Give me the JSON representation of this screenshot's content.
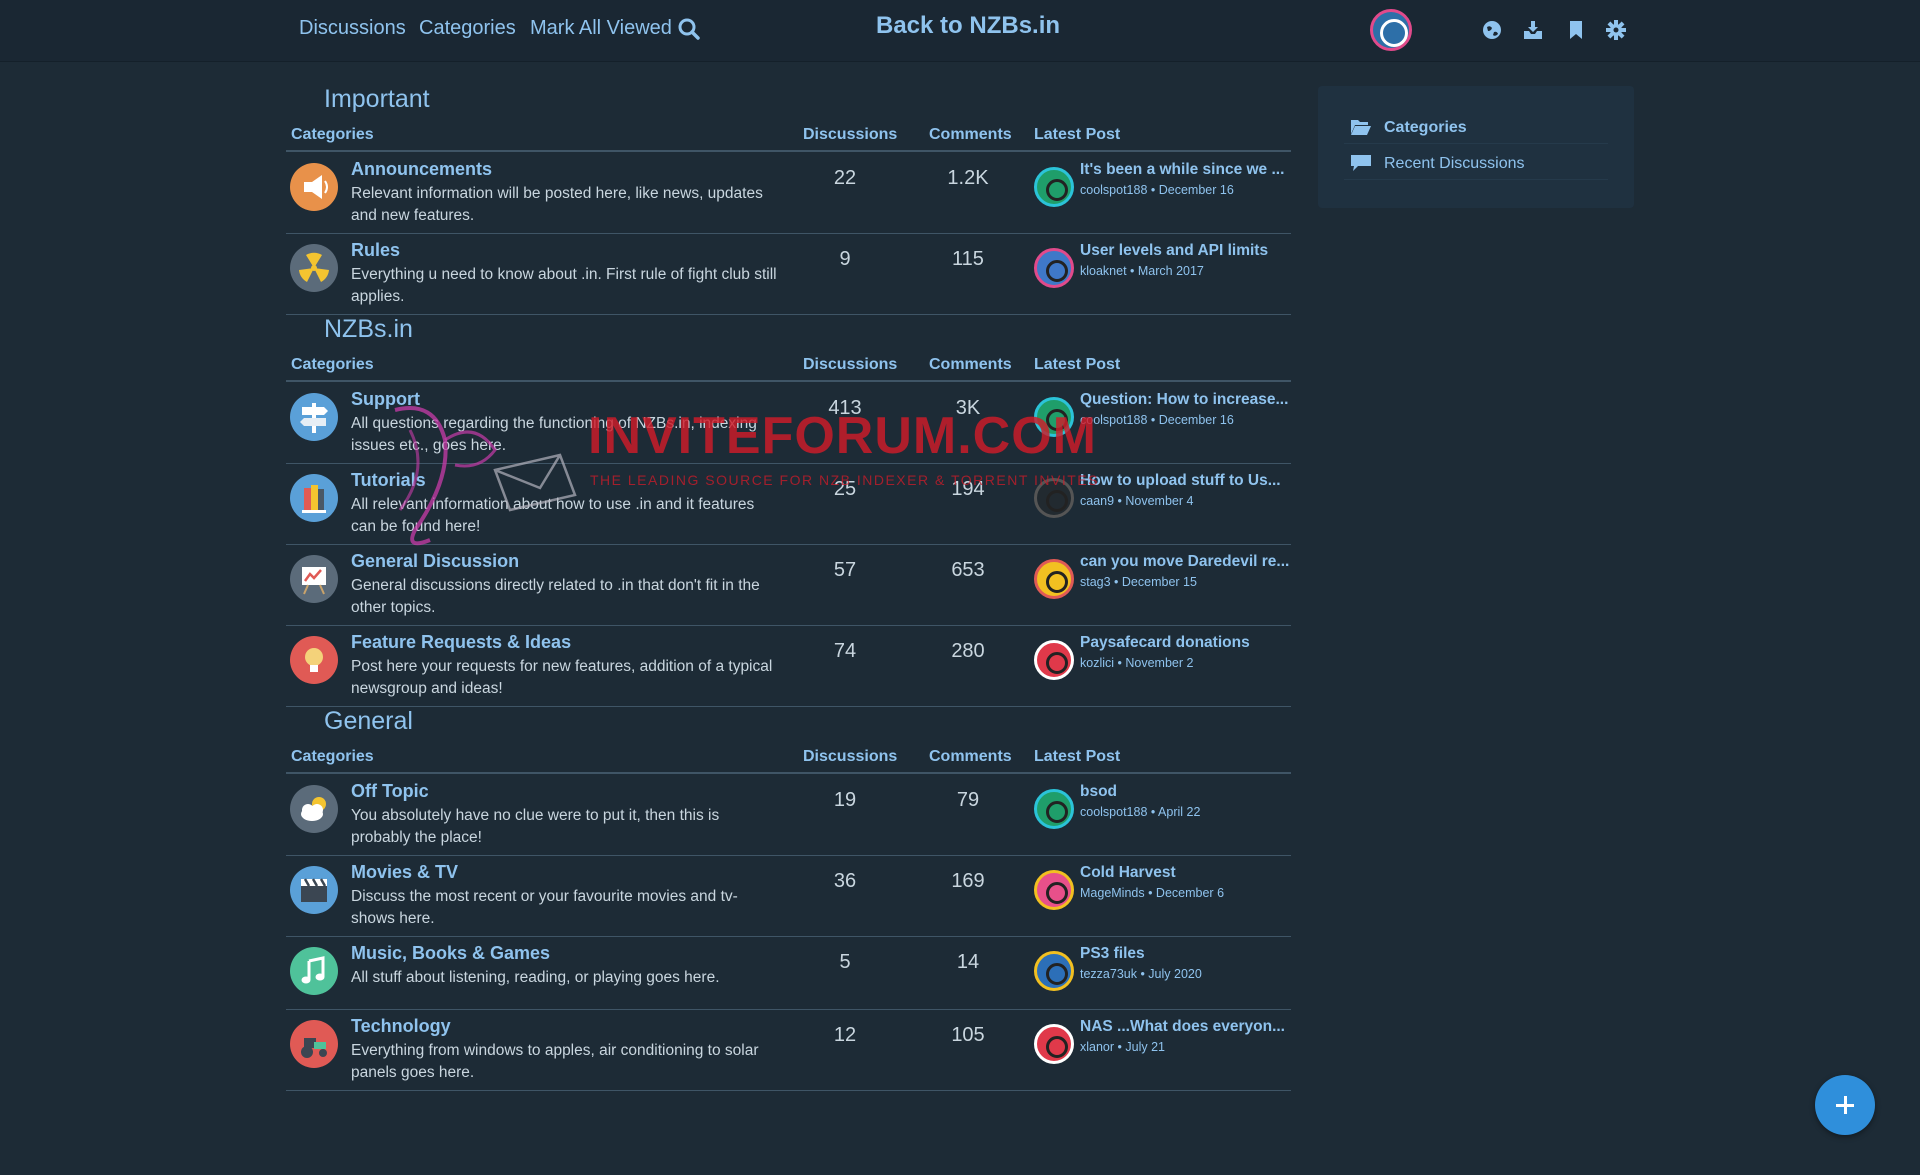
{
  "nav": {
    "discussions": "Discussions",
    "categories": "Categories",
    "mark_all_viewed": "Mark All Viewed",
    "back_link": "Back to NZBs.in"
  },
  "table_headers": {
    "categories": "Categories",
    "discussions": "Discussions",
    "comments": "Comments",
    "latest_post": "Latest Post"
  },
  "sections": [
    {
      "title": "Important",
      "rows": [
        {
          "name": "Announcements",
          "desc": "Relevant information will be posted here, like news, updates and new features.",
          "discussions": "22",
          "comments": "1.2K",
          "latest_title": "It's been a while since we ...",
          "latest_meta": "coolspot188 • December 16",
          "icon": "megaphone-icon",
          "icon_bg": "#e8914a",
          "avatar_color": "#1f9e6a"
        },
        {
          "name": "Rules",
          "desc": "Everything u need to know about .in. First rule of fight club still applies.",
          "discussions": "9",
          "comments": "115",
          "latest_title": "User levels and API limits",
          "latest_meta": "kloaknet • March 2017",
          "icon": "radiation-icon",
          "icon_bg": "#5b6b7a",
          "avatar_color": "#3f78c8"
        }
      ]
    },
    {
      "title": "NZBs.in",
      "rows": [
        {
          "name": "Support",
          "desc": "All questions regarding the functioning of NZBs.in, indexing issues etc., goes here.",
          "discussions": "413",
          "comments": "3K",
          "latest_title": "Question: How to increase...",
          "latest_meta": "coolspot188 • December 16",
          "icon": "signpost-icon",
          "icon_bg": "#5aa0d8",
          "avatar_color": "#1f9e6a"
        },
        {
          "name": "Tutorials",
          "desc": "All relevant information about how to use .in and it features can be found here!",
          "discussions": "25",
          "comments": "194",
          "latest_title": "How to upload stuff to Us...",
          "latest_meta": "caan9 • November 4",
          "icon": "books-icon",
          "icon_bg": "#5aa0d8",
          "avatar_color": "#222a30"
        },
        {
          "name": "General Discussion",
          "desc": "General discussions directly related to .in that don't fit in the other topics.",
          "discussions": "57",
          "comments": "653",
          "latest_title": "can you move Daredevil re...",
          "latest_meta": "stag3 • December 15",
          "icon": "easel-icon",
          "icon_bg": "#5b6b7a",
          "avatar_color": "#f2c021"
        },
        {
          "name": "Feature Requests & Ideas",
          "desc": "Post here your requests for new features, addition of a typical newsgroup and ideas!",
          "discussions": "74",
          "comments": "280",
          "latest_title": "Paysafecard donations",
          "latest_meta": "kozlici • November 2",
          "icon": "lightbulb-icon",
          "icon_bg": "#e05a55",
          "avatar_color": "#e0394a"
        }
      ]
    },
    {
      "title": "General",
      "rows": [
        {
          "name": "Off Topic",
          "desc": "You absolutely have no clue were to put it, then this is probably the place!",
          "discussions": "19",
          "comments": "79",
          "latest_title": "bsod",
          "latest_meta": "coolspot188 • April 22",
          "icon": "cloud-sun-icon",
          "icon_bg": "#5b6b7a",
          "avatar_color": "#1f9e6a"
        },
        {
          "name": "Movies & TV",
          "desc": "Discuss the most recent or your favourite movies and tv-shows here.",
          "discussions": "36",
          "comments": "169",
          "latest_title": "Cold Harvest",
          "latest_meta": "MageMinds • December 6",
          "icon": "clapperboard-icon",
          "icon_bg": "#5aa0d8",
          "avatar_color": "#e8508a"
        },
        {
          "name": "Music, Books & Games",
          "desc": "All stuff about listening, reading, or playing goes here.",
          "discussions": "5",
          "comments": "14",
          "latest_title": "PS3 files",
          "latest_meta": "tezza73uk • July 2020",
          "icon": "music-note-icon",
          "icon_bg": "#4fc29a",
          "avatar_color": "#2c6fb8"
        },
        {
          "name": "Technology",
          "desc": "Everything from windows to apples, air conditioning to solar panels goes here.",
          "discussions": "12",
          "comments": "105",
          "latest_title": "NAS ...What does everyon...",
          "latest_meta": "xlanor • July 21",
          "icon": "tractor-icon",
          "icon_bg": "#e05a55",
          "avatar_color": "#e0394a"
        }
      ]
    }
  ],
  "sidebar": {
    "categories": "Categories",
    "recent": "Recent Discussions"
  },
  "watermark": {
    "main": "INVITEFORUM.COM",
    "sub": "THE LEADING SOURCE FOR NZB INDEXER & TORRENT INVITES"
  }
}
